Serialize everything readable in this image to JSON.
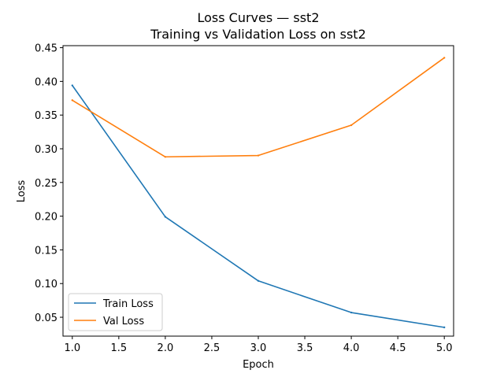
{
  "chart_data": {
    "type": "line",
    "title": "Loss Curves — sst2",
    "subtitle": "Training vs Validation Loss on sst2",
    "xlabel": "Epoch",
    "ylabel": "Loss",
    "xlim": [
      0.9,
      5.1
    ],
    "ylim": [
      0.022,
      0.453
    ],
    "x_ticks": [
      1.0,
      1.5,
      2.0,
      2.5,
      3.0,
      3.5,
      4.0,
      4.5,
      5.0
    ],
    "x_tick_labels": [
      "1.0",
      "1.5",
      "2.0",
      "2.5",
      "3.0",
      "3.5",
      "4.0",
      "4.5",
      "5.0"
    ],
    "y_ticks": [
      0.05,
      0.1,
      0.15,
      0.2,
      0.25,
      0.3,
      0.35,
      0.4,
      0.45
    ],
    "y_tick_labels": [
      "0.05",
      "0.10",
      "0.15",
      "0.20",
      "0.25",
      "0.30",
      "0.35",
      "0.40",
      "0.45"
    ],
    "grid": false,
    "legend_position": "lower-left",
    "x": [
      1,
      2,
      3,
      4,
      5
    ],
    "series": [
      {
        "name": "Train Loss",
        "color": "#1f77b4",
        "values": [
          0.394,
          0.199,
          0.104,
          0.057,
          0.035
        ]
      },
      {
        "name": "Val Loss",
        "color": "#ff7f0e",
        "values": [
          0.372,
          0.288,
          0.29,
          0.335,
          0.435
        ]
      }
    ]
  }
}
